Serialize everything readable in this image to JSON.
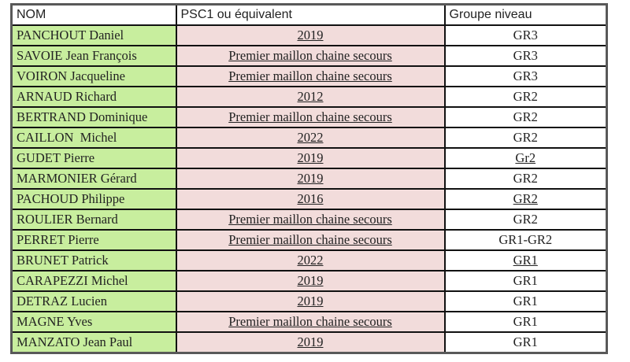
{
  "colors": {
    "name_column_bg": "#c8ee9e",
    "psc1_column_bg": "#f2dcdb",
    "groupe_column_bg": "#ffffff",
    "inner_border": "#111111",
    "outer_border": "#595959",
    "text": "#222222"
  },
  "table": {
    "columns": [
      {
        "key": "nom",
        "label": "NOM"
      },
      {
        "key": "psc1",
        "label": "PSC1 ou équivalent"
      },
      {
        "key": "groupe",
        "label": "Groupe niveau"
      }
    ],
    "rows": [
      {
        "nom": "PANCHOUT Daniel",
        "psc1": "2019",
        "groupe": "GR3",
        "groupe_underline": false
      },
      {
        "nom": "SAVOIE Jean François",
        "psc1": "Premier maillon chaine secours",
        "groupe": "GR3",
        "groupe_underline": false
      },
      {
        "nom": "VOIRON Jacqueline",
        "psc1": "Premier maillon chaine secours",
        "groupe": "GR3",
        "groupe_underline": false
      },
      {
        "nom": "ARNAUD Richard",
        "psc1": "2012",
        "groupe": "GR2",
        "groupe_underline": false
      },
      {
        "nom": "BERTRAND Dominique",
        "psc1": "Premier maillon chaine secours",
        "groupe": "GR2",
        "groupe_underline": false
      },
      {
        "nom": "CAILLON  Michel",
        "psc1": "2022",
        "groupe": "GR2",
        "groupe_underline": false
      },
      {
        "nom": "GUDET Pierre",
        "psc1": "2019",
        "groupe": "Gr2",
        "groupe_underline": true
      },
      {
        "nom": "MARMONIER Gérard",
        "psc1": "2019",
        "groupe": "GR2",
        "groupe_underline": false
      },
      {
        "nom": "PACHOUD Philippe",
        "psc1": "2016",
        "groupe": "GR2",
        "groupe_underline": true
      },
      {
        "nom": "ROULIER Bernard",
        "psc1": "Premier maillon chaine secours",
        "groupe": "GR2",
        "groupe_underline": false
      },
      {
        "nom": "PERRET Pierre",
        "psc1": "Premier maillon chaine secours",
        "groupe": "GR1-GR2",
        "groupe_underline": false
      },
      {
        "nom": "BRUNET Patrick",
        "psc1": "2022",
        "groupe": "GR1",
        "groupe_underline": true
      },
      {
        "nom": "CARAPEZZI Michel",
        "psc1": "2019",
        "groupe": "GR1",
        "groupe_underline": false
      },
      {
        "nom": "DETRAZ Lucien",
        "psc1": "2019",
        "groupe": "GR1",
        "groupe_underline": false
      },
      {
        "nom": "MAGNE Yves",
        "psc1": "Premier maillon chaine secours",
        "groupe": "GR1",
        "groupe_underline": false
      },
      {
        "nom": "MANZATO Jean Paul",
        "psc1": "2019",
        "groupe": "GR1",
        "groupe_underline": false
      }
    ]
  }
}
